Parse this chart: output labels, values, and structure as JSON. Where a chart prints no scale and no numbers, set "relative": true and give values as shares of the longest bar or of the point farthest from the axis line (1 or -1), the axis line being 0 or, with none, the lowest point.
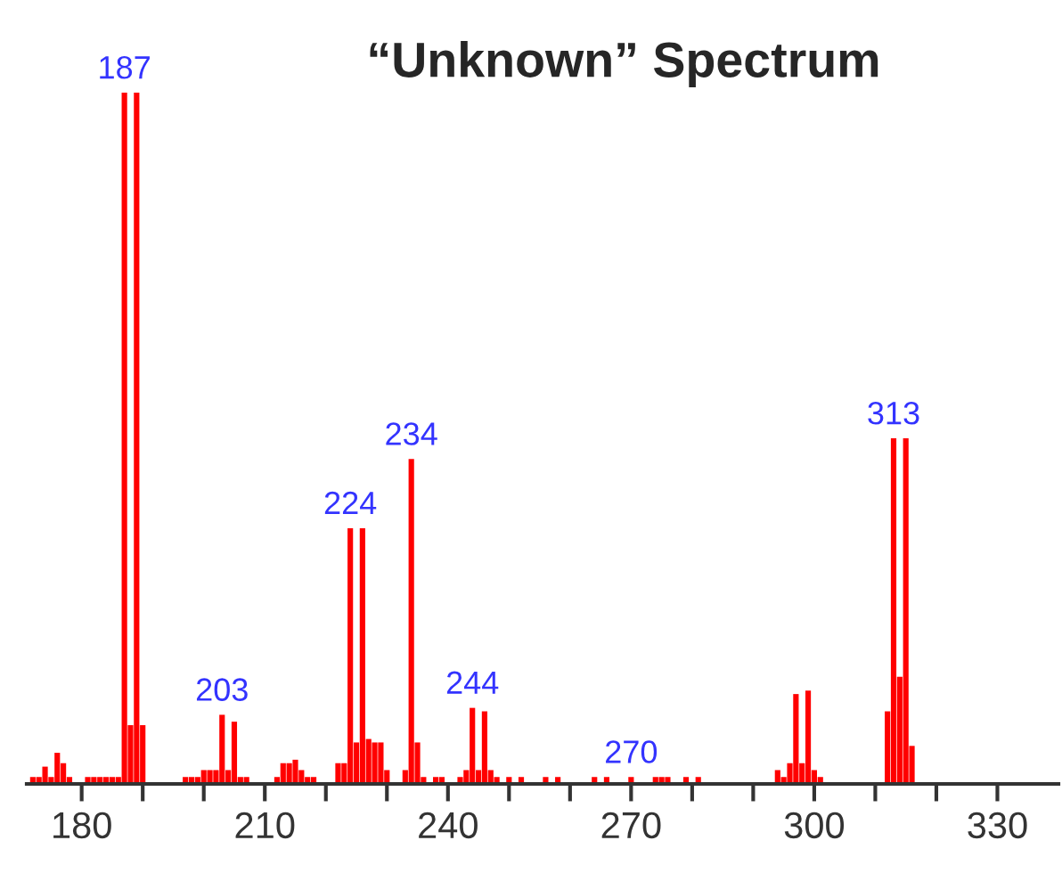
{
  "chart_data": {
    "type": "bar",
    "title": "“Unknown” Spectrum",
    "relative": true,
    "color": "#ff0000",
    "x": [
      172,
      173,
      174,
      175,
      176,
      177,
      178,
      181,
      182,
      183,
      184,
      185,
      186,
      187,
      188,
      189,
      190,
      197,
      198,
      199,
      200,
      201,
      202,
      203,
      204,
      205,
      206,
      207,
      212,
      213,
      214,
      215,
      216,
      217,
      218,
      222,
      223,
      224,
      225,
      226,
      227,
      228,
      229,
      230,
      233,
      234,
      235,
      236,
      238,
      239,
      242,
      243,
      244,
      245,
      246,
      247,
      248,
      250,
      252,
      256,
      258,
      264,
      266,
      270,
      274,
      275,
      276,
      279,
      281,
      294,
      295,
      296,
      297,
      298,
      299,
      300,
      301,
      312,
      313,
      314,
      315,
      316
    ],
    "values": [
      0.01,
      0.01,
      0.025,
      0.01,
      0.045,
      0.03,
      0.01,
      0.01,
      0.01,
      0.01,
      0.01,
      0.01,
      0.01,
      1.0,
      0.085,
      1.0,
      0.085,
      0.01,
      0.01,
      0.01,
      0.02,
      0.02,
      0.02,
      0.1,
      0.02,
      0.09,
      0.01,
      0.01,
      0.01,
      0.03,
      0.03,
      0.035,
      0.02,
      0.01,
      0.01,
      0.03,
      0.03,
      0.37,
      0.06,
      0.37,
      0.065,
      0.06,
      0.06,
      0.02,
      0.02,
      0.47,
      0.06,
      0.01,
      0.01,
      0.01,
      0.01,
      0.02,
      0.11,
      0.02,
      0.105,
      0.02,
      0.01,
      0.01,
      0.01,
      0.01,
      0.01,
      0.01,
      0.01,
      0.01,
      0.01,
      0.01,
      0.01,
      0.01,
      0.01,
      0.02,
      0.01,
      0.03,
      0.13,
      0.03,
      0.135,
      0.02,
      0.01,
      0.105,
      0.5,
      0.155,
      0.5,
      0.055
    ],
    "xlim": [
      171,
      340
    ],
    "xticks": [
      180,
      {
        "value": 190,
        "label": null
      },
      {
        "value": 200,
        "label": null
      },
      210,
      {
        "value": 220,
        "label": null
      },
      {
        "value": 230,
        "label": null
      },
      240,
      {
        "value": 250,
        "label": null
      },
      {
        "value": 260,
        "label": null
      },
      270,
      {
        "value": 280,
        "label": null
      },
      {
        "value": 290,
        "label": null
      },
      300,
      {
        "value": 310,
        "label": null
      },
      {
        "value": 320,
        "label": null
      },
      330
    ],
    "grid": false,
    "annotations": [
      {
        "text": "187",
        "x": 187,
        "y": 1.0
      },
      {
        "text": "203",
        "x": 203,
        "y": 0.1
      },
      {
        "text": "224",
        "x": 224,
        "y": 0.37
      },
      {
        "text": "234",
        "x": 234,
        "y": 0.47
      },
      {
        "text": "244",
        "x": 244,
        "y": 0.11
      },
      {
        "text": "270",
        "x": 270,
        "y": 0.01
      },
      {
        "text": "313",
        "x": 313,
        "y": 0.5
      }
    ]
  }
}
